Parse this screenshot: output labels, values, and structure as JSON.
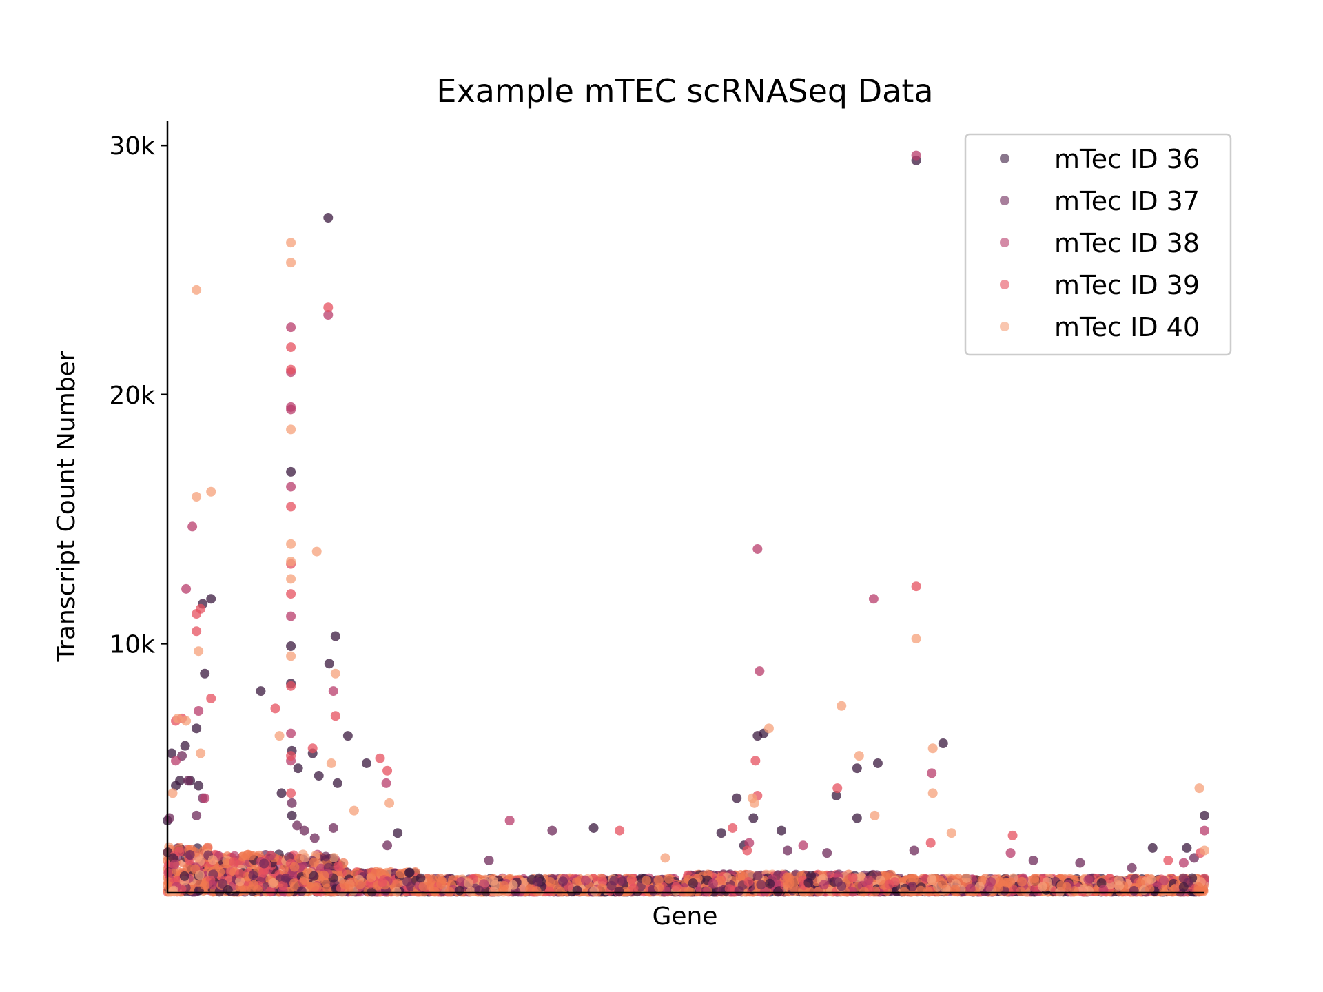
{
  "chart_data": {
    "type": "scatter",
    "title": "Example mTEC scRNASeq Data",
    "xlabel": "Gene",
    "ylabel": "Transcript Count Number",
    "ylim": [
      0,
      31000
    ],
    "y_ticks": [
      {
        "value": 10000,
        "label": "10k"
      },
      {
        "value": 20000,
        "label": "20k"
      },
      {
        "value": 30000,
        "label": "30k"
      }
    ],
    "x_ticks": [],
    "gene_range": [
      0,
      1000
    ],
    "grid": false,
    "legend_position": "top-right",
    "series": [
      {
        "name": "mTec ID 36",
        "color": "#3b1a3f",
        "points": [
          [
            0,
            2900
          ],
          [
            4,
            5600
          ],
          [
            8,
            4300
          ],
          [
            12,
            4500
          ],
          [
            17,
            5900
          ],
          [
            22,
            4500
          ],
          [
            28,
            6600
          ],
          [
            30,
            4300
          ],
          [
            34,
            11600
          ],
          [
            36,
            8800
          ],
          [
            42,
            11800
          ],
          [
            90,
            8100
          ],
          [
            110,
            4000
          ],
          [
            119,
            16900
          ],
          [
            119,
            9900
          ],
          [
            119,
            8400
          ],
          [
            120,
            5700
          ],
          [
            120,
            3100
          ],
          [
            126,
            5000
          ],
          [
            140,
            5600
          ],
          [
            146,
            4700
          ],
          [
            155,
            27100
          ],
          [
            156,
            9200
          ],
          [
            162,
            10300
          ],
          [
            164,
            4400
          ],
          [
            174,
            6300
          ],
          [
            192,
            5200
          ],
          [
            222,
            2400
          ],
          [
            411,
            2600
          ],
          [
            534,
            2400
          ],
          [
            549,
            3800
          ],
          [
            556,
            1900
          ],
          [
            565,
            3000
          ],
          [
            569,
            6300
          ],
          [
            575,
            6400
          ],
          [
            592,
            2500
          ],
          [
            665,
            3000
          ],
          [
            665,
            5000
          ],
          [
            645,
            3900
          ],
          [
            685,
            5200
          ],
          [
            722,
            29400
          ],
          [
            748,
            6000
          ],
          [
            1000,
            3100
          ],
          [
            950,
            1800
          ],
          [
            983,
            1800
          ]
        ]
      },
      {
        "name": "mTec ID 37",
        "color": "#6e2a5a",
        "points": [
          [
            2,
            3000
          ],
          [
            14,
            5500
          ],
          [
            20,
            4500
          ],
          [
            28,
            3100
          ],
          [
            34,
            3800
          ],
          [
            120,
            3600
          ],
          [
            125,
            2700
          ],
          [
            132,
            2500
          ],
          [
            142,
            2200
          ],
          [
            160,
            2600
          ],
          [
            212,
            1900
          ],
          [
            310,
            1300
          ],
          [
            371,
            2500
          ],
          [
            598,
            1700
          ],
          [
            636,
            1600
          ],
          [
            720,
            1700
          ],
          [
            835,
            1300
          ],
          [
            880,
            1200
          ],
          [
            930,
            1000
          ],
          [
            990,
            1400
          ]
        ]
      },
      {
        "name": "mTec ID 38",
        "color": "#b83c6b",
        "points": [
          [
            8,
            5300
          ],
          [
            18,
            12200
          ],
          [
            24,
            14700
          ],
          [
            30,
            7300
          ],
          [
            36,
            3800
          ],
          [
            119,
            22700
          ],
          [
            119,
            20900
          ],
          [
            119,
            19500
          ],
          [
            119,
            19400
          ],
          [
            119,
            16300
          ],
          [
            119,
            11100
          ],
          [
            119,
            6400
          ],
          [
            119,
            5300
          ],
          [
            155,
            23200
          ],
          [
            160,
            8100
          ],
          [
            211,
            4400
          ],
          [
            330,
            2900
          ],
          [
            561,
            2000
          ],
          [
            569,
            13800
          ],
          [
            571,
            8900
          ],
          [
            613,
            1900
          ],
          [
            681,
            11800
          ],
          [
            722,
            29600
          ],
          [
            737,
            4800
          ],
          [
            813,
            1600
          ],
          [
            1000,
            2500
          ],
          [
            980,
            1200
          ]
        ]
      },
      {
        "name": "mTec ID 39",
        "color": "#e6505f",
        "points": [
          [
            8,
            6900
          ],
          [
            14,
            7000
          ],
          [
            28,
            10500
          ],
          [
            28,
            11200
          ],
          [
            32,
            11400
          ],
          [
            42,
            7800
          ],
          [
            104,
            7400
          ],
          [
            119,
            21900
          ],
          [
            119,
            21000
          ],
          [
            119,
            15500
          ],
          [
            119,
            13200
          ],
          [
            119,
            12000
          ],
          [
            119,
            8300
          ],
          [
            119,
            5500
          ],
          [
            119,
            4000
          ],
          [
            140,
            5800
          ],
          [
            155,
            23500
          ],
          [
            162,
            7100
          ],
          [
            205,
            5400
          ],
          [
            212,
            4900
          ],
          [
            436,
            2500
          ],
          [
            545,
            2600
          ],
          [
            559,
            1700
          ],
          [
            567,
            5300
          ],
          [
            569,
            3900
          ],
          [
            646,
            4200
          ],
          [
            722,
            12300
          ],
          [
            736,
            2000
          ],
          [
            815,
            2300
          ],
          [
            965,
            1300
          ],
          [
            996,
            1600
          ]
        ]
      },
      {
        "name": "mTec ID 40",
        "color": "#f5a07a",
        "points": [
          [
            5,
            4000
          ],
          [
            10,
            7000
          ],
          [
            18,
            6900
          ],
          [
            28,
            15900
          ],
          [
            28,
            24200
          ],
          [
            30,
            9700
          ],
          [
            32,
            5600
          ],
          [
            42,
            16100
          ],
          [
            108,
            6300
          ],
          [
            119,
            26100
          ],
          [
            119,
            25300
          ],
          [
            119,
            18600
          ],
          [
            119,
            14000
          ],
          [
            119,
            13300
          ],
          [
            119,
            12600
          ],
          [
            119,
            9500
          ],
          [
            144,
            13700
          ],
          [
            158,
            5200
          ],
          [
            162,
            8800
          ],
          [
            180,
            3300
          ],
          [
            214,
            3600
          ],
          [
            480,
            1400
          ],
          [
            564,
            3800
          ],
          [
            566,
            3600
          ],
          [
            580,
            6600
          ],
          [
            650,
            7500
          ],
          [
            667,
            5500
          ],
          [
            682,
            3100
          ],
          [
            722,
            10200
          ],
          [
            738,
            5800
          ],
          [
            738,
            4000
          ],
          [
            756,
            2400
          ],
          [
            995,
            4200
          ],
          [
            1000,
            1700
          ]
        ]
      }
    ]
  }
}
